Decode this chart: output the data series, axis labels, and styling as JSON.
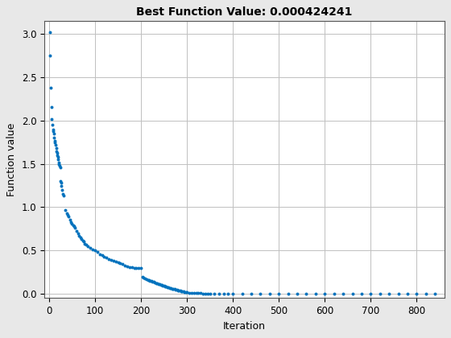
{
  "title": "Best Function Value: 0.000424241",
  "xlabel": "Iteration",
  "ylabel": "Function value",
  "dot_color": "#0072BD",
  "dot_size": 8,
  "background_color": "#E8E8E8",
  "axes_facecolor": "#FFFFFF",
  "grid_color": "#C0C0C0",
  "xlim": [
    -10,
    860
  ],
  "ylim": [
    -0.05,
    3.15
  ],
  "yticks": [
    0,
    0.5,
    1.0,
    1.5,
    2.0,
    2.5,
    3.0
  ],
  "xticks": [
    0,
    100,
    200,
    300,
    400,
    500,
    600,
    700,
    800
  ],
  "title_fontsize": 10,
  "label_fontsize": 9,
  "tick_fontsize": 8.5,
  "key_points": [
    [
      1,
      3.02
    ],
    [
      2,
      2.75
    ],
    [
      4,
      2.38
    ],
    [
      5,
      2.16
    ],
    [
      6,
      2.02
    ],
    [
      7,
      1.95
    ],
    [
      8,
      1.9
    ],
    [
      9,
      1.88
    ],
    [
      10,
      1.85
    ],
    [
      11,
      1.8
    ],
    [
      12,
      1.77
    ],
    [
      13,
      1.75
    ],
    [
      14,
      1.72
    ],
    [
      15,
      1.68
    ],
    [
      16,
      1.65
    ],
    [
      17,
      1.63
    ],
    [
      18,
      1.6
    ],
    [
      19,
      1.58
    ],
    [
      20,
      1.55
    ],
    [
      21,
      1.52
    ],
    [
      22,
      1.5
    ],
    [
      23,
      1.48
    ],
    [
      24,
      1.46
    ],
    [
      25,
      1.3
    ],
    [
      26,
      1.28
    ],
    [
      27,
      1.25
    ],
    [
      28,
      1.2
    ],
    [
      30,
      1.15
    ],
    [
      32,
      1.13
    ],
    [
      35,
      0.97
    ],
    [
      38,
      0.93
    ],
    [
      40,
      0.91
    ],
    [
      42,
      0.89
    ],
    [
      45,
      0.86
    ],
    [
      48,
      0.83
    ],
    [
      50,
      0.81
    ],
    [
      53,
      0.79
    ],
    [
      55,
      0.78
    ],
    [
      57,
      0.76
    ],
    [
      60,
      0.73
    ],
    [
      63,
      0.7
    ],
    [
      65,
      0.67
    ],
    [
      68,
      0.65
    ],
    [
      70,
      0.63
    ],
    [
      73,
      0.61
    ],
    [
      75,
      0.6
    ],
    [
      78,
      0.58
    ],
    [
      80,
      0.57
    ],
    [
      85,
      0.55
    ],
    [
      90,
      0.53
    ],
    [
      95,
      0.51
    ],
    [
      100,
      0.5
    ],
    [
      105,
      0.48
    ],
    [
      110,
      0.46
    ],
    [
      115,
      0.45
    ],
    [
      120,
      0.43
    ],
    [
      125,
      0.42
    ],
    [
      130,
      0.4
    ],
    [
      135,
      0.39
    ],
    [
      140,
      0.38
    ],
    [
      145,
      0.37
    ],
    [
      150,
      0.36
    ],
    [
      155,
      0.35
    ],
    [
      160,
      0.34
    ],
    [
      165,
      0.33
    ],
    [
      170,
      0.32
    ],
    [
      175,
      0.31
    ],
    [
      180,
      0.31
    ],
    [
      185,
      0.3
    ],
    [
      190,
      0.3
    ],
    [
      195,
      0.3
    ],
    [
      200,
      0.3
    ],
    [
      203,
      0.2
    ],
    [
      206,
      0.19
    ],
    [
      209,
      0.175
    ],
    [
      212,
      0.165
    ],
    [
      215,
      0.16
    ],
    [
      218,
      0.155
    ],
    [
      220,
      0.15
    ],
    [
      222,
      0.145
    ],
    [
      225,
      0.14
    ],
    [
      228,
      0.135
    ],
    [
      230,
      0.13
    ],
    [
      233,
      0.125
    ],
    [
      235,
      0.12
    ],
    [
      238,
      0.115
    ],
    [
      240,
      0.11
    ],
    [
      243,
      0.105
    ],
    [
      245,
      0.1
    ],
    [
      248,
      0.095
    ],
    [
      250,
      0.09
    ],
    [
      253,
      0.085
    ],
    [
      255,
      0.08
    ],
    [
      258,
      0.075
    ],
    [
      260,
      0.07
    ],
    [
      263,
      0.065
    ],
    [
      265,
      0.065
    ],
    [
      268,
      0.06
    ],
    [
      270,
      0.055
    ],
    [
      273,
      0.052
    ],
    [
      275,
      0.05
    ],
    [
      278,
      0.045
    ],
    [
      280,
      0.04
    ],
    [
      283,
      0.038
    ],
    [
      285,
      0.035
    ],
    [
      288,
      0.032
    ],
    [
      290,
      0.028
    ],
    [
      293,
      0.025
    ],
    [
      295,
      0.022
    ],
    [
      298,
      0.018
    ],
    [
      300,
      0.015
    ],
    [
      305,
      0.012
    ],
    [
      310,
      0.01
    ],
    [
      315,
      0.008
    ],
    [
      320,
      0.007
    ],
    [
      325,
      0.006
    ],
    [
      330,
      0.005
    ],
    [
      335,
      0.004
    ],
    [
      340,
      0.004
    ],
    [
      345,
      0.003
    ],
    [
      350,
      0.003
    ],
    [
      360,
      0.002
    ],
    [
      370,
      0.002
    ],
    [
      380,
      0.002
    ],
    [
      390,
      0.001
    ],
    [
      400,
      0.001
    ],
    [
      420,
      0.001
    ],
    [
      440,
      0.001
    ],
    [
      460,
      0.001
    ],
    [
      480,
      0.001
    ],
    [
      500,
      0.001
    ],
    [
      520,
      0.001
    ],
    [
      540,
      0.001
    ],
    [
      560,
      0.001
    ],
    [
      580,
      0.001
    ],
    [
      600,
      0.001
    ],
    [
      620,
      0.001
    ],
    [
      640,
      0.001
    ],
    [
      660,
      0.001
    ],
    [
      680,
      0.001
    ],
    [
      700,
      0.001
    ],
    [
      720,
      0.001
    ],
    [
      740,
      0.001
    ],
    [
      760,
      0.001
    ],
    [
      780,
      0.001
    ],
    [
      800,
      0.001
    ],
    [
      820,
      0.001
    ],
    [
      840,
      0.000424
    ]
  ]
}
